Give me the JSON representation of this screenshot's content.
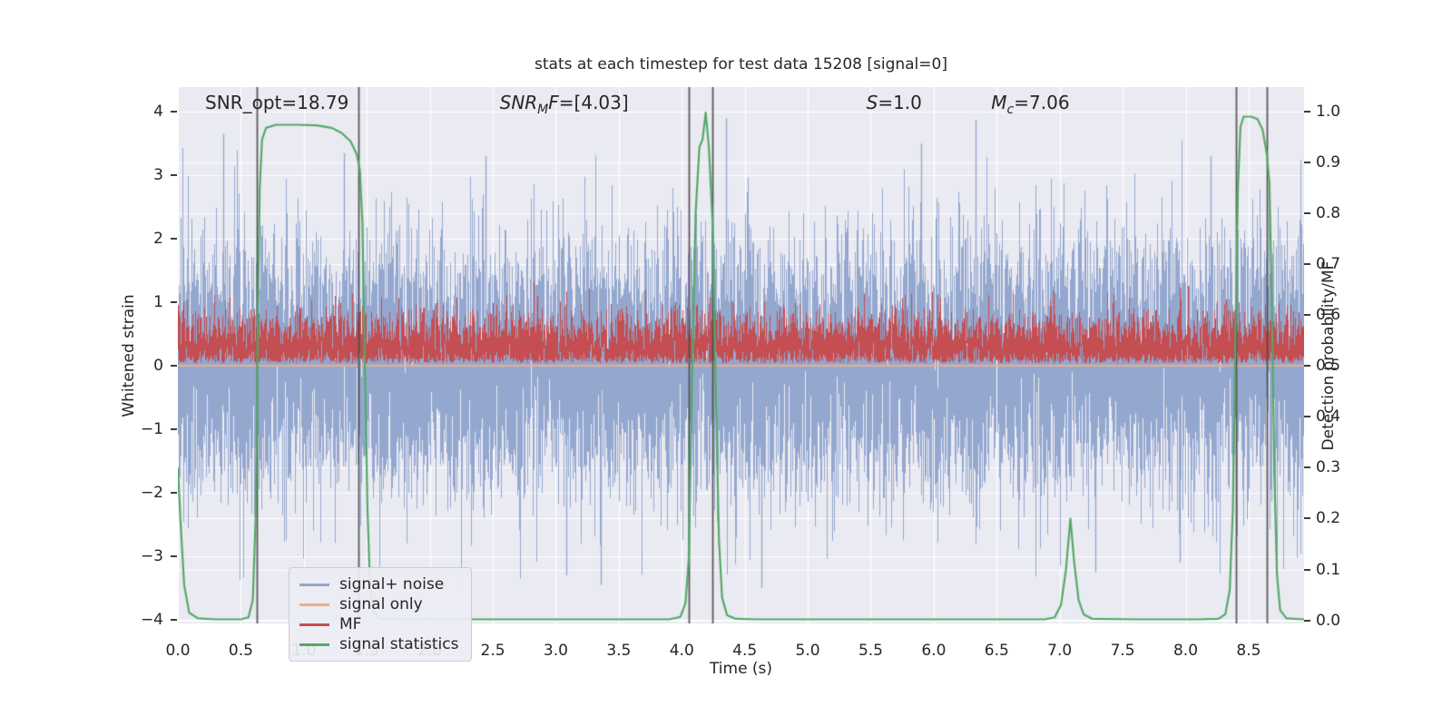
{
  "chart_data": {
    "type": "line",
    "title": "stats at each timestep for test data 15208 [signal=0]",
    "xlabel": "Time (s)",
    "ylabel_left": "Whitened strain",
    "ylabel_right": "Detection probability/MF",
    "xlim": [
      0,
      8.94
    ],
    "ylim_left": [
      -4.06,
      4.39
    ],
    "ylim_right": [
      -0.006,
      1.048
    ],
    "grid": true,
    "grid_color": "#ffffff",
    "background_color": "#eaeaf2",
    "x_ticks": [
      [
        0,
        "0.0"
      ],
      [
        0.5,
        "0.5"
      ],
      [
        1,
        "1.0"
      ],
      [
        1.5,
        "1.5"
      ],
      [
        2,
        "2.0"
      ],
      [
        2.5,
        "2.5"
      ],
      [
        3,
        "3.0"
      ],
      [
        3.5,
        "3.5"
      ],
      [
        4,
        "4.0"
      ],
      [
        4.5,
        "4.5"
      ],
      [
        5,
        "5.0"
      ],
      [
        5.5,
        "5.5"
      ],
      [
        6,
        "6.0"
      ],
      [
        6.5,
        "6.5"
      ],
      [
        7,
        "7.0"
      ],
      [
        7.5,
        "7.5"
      ],
      [
        8,
        "8.0"
      ],
      [
        8.5,
        "8.5"
      ]
    ],
    "y_ticks_left": [
      [
        -4,
        "−4"
      ],
      [
        -3,
        "−3"
      ],
      [
        -2,
        "−2"
      ],
      [
        -1,
        "−1"
      ],
      [
        0,
        "0"
      ],
      [
        1,
        "1"
      ],
      [
        2,
        "2"
      ],
      [
        3,
        "3"
      ],
      [
        4,
        "4"
      ]
    ],
    "y_ticks_right": [
      [
        0,
        "0.0"
      ],
      [
        0.1,
        "0.1"
      ],
      [
        0.2,
        "0.2"
      ],
      [
        0.3,
        "0.3"
      ],
      [
        0.4,
        "0.4"
      ],
      [
        0.5,
        "0.5"
      ],
      [
        0.6,
        "0.6"
      ],
      [
        0.7,
        "0.7"
      ],
      [
        0.8,
        "0.8"
      ],
      [
        0.9,
        "0.9"
      ],
      [
        1,
        "1.0"
      ]
    ],
    "series": {
      "signal_plus_noise": {
        "label": "signal+ noise",
        "axis": "left",
        "type": "noise_band",
        "color": "#94a8cf",
        "sigma": 1.02,
        "samples_per_column": 8,
        "seed": 42,
        "spikes": [
          [
            0.36,
            3.65
          ],
          [
            1.32,
            3.35
          ],
          [
            2.44,
            3.3
          ],
          [
            3.08,
            -3.3
          ],
          [
            3.36,
            -3.45
          ],
          [
            4.35,
            3.9
          ],
          [
            4.63,
            -3.5
          ],
          [
            5.9,
            3.5
          ],
          [
            6.33,
            3.88
          ],
          [
            7.28,
            -3.25
          ],
          [
            7.95,
            -3.1
          ],
          [
            8.2,
            3.3
          ]
        ]
      },
      "signal_only": {
        "label": "signal only",
        "axis": "left",
        "type": "constant",
        "color": "#e9af89",
        "value": 0
      },
      "mf": {
        "label": "MF",
        "axis": "left",
        "type": "abs_noise_band",
        "color": "#c44e52",
        "scale": 0.36,
        "offset": 0.04,
        "samples_per_column": 6,
        "seed": 7,
        "spikes": [
          [
            1.38,
            1.14
          ],
          [
            2.85,
            1.1
          ],
          [
            4.22,
            1.08
          ],
          [
            6.95,
            1.17
          ],
          [
            8.32,
            1.04
          ]
        ]
      },
      "signal_statistics": {
        "label": "signal statistics",
        "axis": "right",
        "type": "polyline",
        "color": "#55a868",
        "points": [
          [
            0,
            0.3
          ],
          [
            0.02,
            0.2
          ],
          [
            0.05,
            0.07
          ],
          [
            0.09,
            0.015
          ],
          [
            0.16,
            0.004
          ],
          [
            0.3,
            0.002
          ],
          [
            0.5,
            0.002
          ],
          [
            0.56,
            0.006
          ],
          [
            0.595,
            0.04
          ],
          [
            0.617,
            0.2
          ],
          [
            0.633,
            0.55
          ],
          [
            0.65,
            0.85
          ],
          [
            0.668,
            0.945
          ],
          [
            0.7,
            0.968
          ],
          [
            0.78,
            0.974
          ],
          [
            0.95,
            0.974
          ],
          [
            1.1,
            0.973
          ],
          [
            1.22,
            0.968
          ],
          [
            1.3,
            0.958
          ],
          [
            1.37,
            0.942
          ],
          [
            1.42,
            0.916
          ],
          [
            1.445,
            0.885
          ],
          [
            1.465,
            0.78
          ],
          [
            1.485,
            0.5
          ],
          [
            1.505,
            0.22
          ],
          [
            1.525,
            0.07
          ],
          [
            1.55,
            0.018
          ],
          [
            1.6,
            0.004
          ],
          [
            1.75,
            0.002
          ],
          [
            2.5,
            0.002
          ],
          [
            3.5,
            0.002
          ],
          [
            3.9,
            0.002
          ],
          [
            3.99,
            0.007
          ],
          [
            4.03,
            0.035
          ],
          [
            4.055,
            0.12
          ],
          [
            4.08,
            0.45
          ],
          [
            4.11,
            0.8
          ],
          [
            4.14,
            0.93
          ],
          [
            4.165,
            0.945
          ],
          [
            4.19,
            0.998
          ],
          [
            4.215,
            0.93
          ],
          [
            4.245,
            0.78
          ],
          [
            4.27,
            0.45
          ],
          [
            4.295,
            0.16
          ],
          [
            4.32,
            0.045
          ],
          [
            4.36,
            0.01
          ],
          [
            4.43,
            0.003
          ],
          [
            4.6,
            0.002
          ],
          [
            5.5,
            0.002
          ],
          [
            6.5,
            0.002
          ],
          [
            6.88,
            0.002
          ],
          [
            6.96,
            0.006
          ],
          [
            7.01,
            0.03
          ],
          [
            7.05,
            0.1
          ],
          [
            7.085,
            0.2
          ],
          [
            7.115,
            0.115
          ],
          [
            7.15,
            0.04
          ],
          [
            7.19,
            0.012
          ],
          [
            7.26,
            0.003
          ],
          [
            7.6,
            0.002
          ],
          [
            8.1,
            0.002
          ],
          [
            8.26,
            0.003
          ],
          [
            8.315,
            0.012
          ],
          [
            8.35,
            0.06
          ],
          [
            8.375,
            0.22
          ],
          [
            8.395,
            0.55
          ],
          [
            8.415,
            0.85
          ],
          [
            8.435,
            0.97
          ],
          [
            8.46,
            0.99
          ],
          [
            8.52,
            0.99
          ],
          [
            8.57,
            0.985
          ],
          [
            8.61,
            0.965
          ],
          [
            8.645,
            0.915
          ],
          [
            8.665,
            0.86
          ],
          [
            8.685,
            0.62
          ],
          [
            8.705,
            0.28
          ],
          [
            8.725,
            0.09
          ],
          [
            8.75,
            0.02
          ],
          [
            8.8,
            0.004
          ],
          [
            8.94,
            0.002
          ]
        ]
      }
    },
    "event_lines": {
      "color": "#4a4a4a",
      "times": [
        0.628,
        1.432,
        4.055,
        4.245,
        8.398,
        8.648
      ]
    },
    "annotations": [
      {
        "x_frac": 0.088,
        "parts": [
          {
            "t": "SNR_opt=18.79"
          }
        ]
      },
      {
        "x_frac": 0.343,
        "parts": [
          {
            "t": "SNR",
            "i": true
          },
          {
            "t": "M",
            "i": true,
            "sub": true
          },
          {
            "t": "F",
            "i": true
          },
          {
            "t": "=[4.03]"
          }
        ]
      },
      {
        "x_frac": 0.636,
        "parts": [
          {
            "t": "S",
            "i": true
          },
          {
            "t": "=1.0"
          }
        ]
      },
      {
        "x_frac": 0.757,
        "parts": [
          {
            "t": "M",
            "i": true
          },
          {
            "t": "c",
            "i": true,
            "sub": true
          },
          {
            "t": "=7.06"
          }
        ]
      }
    ],
    "legend": {
      "position": "lower left",
      "items": [
        {
          "label": "signal+ noise",
          "color": "#94a8cf"
        },
        {
          "label": "signal only",
          "color": "#e9af89"
        },
        {
          "label": "MF",
          "color": "#c44e52"
        },
        {
          "label": "signal statistics",
          "color": "#55a868"
        }
      ]
    }
  }
}
